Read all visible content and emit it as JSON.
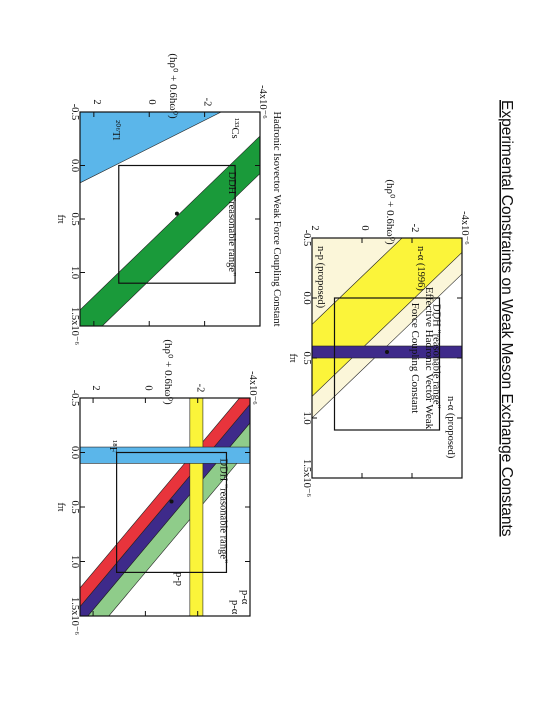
{
  "slide": {
    "title": "Experimental Constraints on Weak Meson Exchange Constants"
  },
  "colors": {
    "background": "#ffffff",
    "cream": "#fbf6d9",
    "yellow": "#fbf43a",
    "green": "#1a9a3a",
    "light_green": "#8fcc8a",
    "blue": "#5bb6ea",
    "purple": "#3e2a8a",
    "red": "#e8343c",
    "axis": "#111111"
  },
  "chart_data": [
    {
      "id": "top",
      "type": "area",
      "title": "Effective Hadronic Vector Weak Force Coupling Constant",
      "xlabel": "fπ",
      "ylabel": "(hρ⁰ + 0.6hω⁰)",
      "xlim": [
        -0.5,
        1.5
      ],
      "ylim": [
        2,
        -4
      ],
      "x_ticks": [
        {
          "v": -0.5,
          "label": "-0.5"
        },
        {
          "v": 0,
          "label": "0.0"
        },
        {
          "v": 0.5,
          "label": "0.5"
        },
        {
          "v": 1.0,
          "label": "1.0"
        },
        {
          "v": 1.5,
          "label": "1.5x10⁻⁶"
        }
      ],
      "y_ticks": [
        {
          "v": 2,
          "label": "2"
        },
        {
          "v": 0,
          "label": "0"
        },
        {
          "v": -2,
          "label": "-2"
        },
        {
          "v": -4,
          "label": "-4x10⁻⁶"
        }
      ],
      "ddh_box": {
        "x": [
          0.0,
          1.1
        ],
        "y": [
          1.1,
          -3.1
        ]
      },
      "ddh_label": "DDH \"reasonable range\"",
      "ddh_point": {
        "x": 0.45,
        "y": -1.0
      },
      "bands": [
        {
          "name": "n-α (proposed)",
          "kind": "diag",
          "color": "cream",
          "x0": -0.5,
          "lo0": -5.5,
          "hi0": 2.0,
          "slope": 5.0
        },
        {
          "name": "n-α (1996)",
          "kind": "diag",
          "color": "yellow",
          "x0": -0.5,
          "lo0": -4.6,
          "hi0": -1.6,
          "slope": 5.0
        },
        {
          "name": "n-p (proposed)",
          "kind": "vertical",
          "color": "purple",
          "x": [
            0.4,
            0.5
          ]
        }
      ]
    },
    {
      "id": "bottom-left",
      "type": "area",
      "title": "Hadronic Isovector Weak Force Coupling Constant",
      "xlabel": "fπ",
      "ylabel": "(hρ⁰ + 0.6hω⁰)",
      "xlim": [
        -0.5,
        1.5
      ],
      "ylim": [
        2.5,
        -4
      ],
      "x_ticks": [
        {
          "v": -0.5,
          "label": "-0.5"
        },
        {
          "v": 0,
          "label": "0.0"
        },
        {
          "v": 0.5,
          "label": "0.5"
        },
        {
          "v": 1.0,
          "label": "1.0"
        },
        {
          "v": 1.5,
          "label": "1.5x10⁻⁶"
        }
      ],
      "y_ticks": [
        {
          "v": 2,
          "label": "2"
        },
        {
          "v": 0,
          "label": "0"
        },
        {
          "v": -2,
          "label": "-2"
        },
        {
          "v": -4,
          "label": "-4x10⁻⁶"
        }
      ],
      "ddh_box": {
        "x": [
          0.0,
          1.1
        ],
        "y": [
          1.1,
          -3.1
        ]
      },
      "ddh_label": "DDH \"reasonable range\"",
      "ddh_point": {
        "x": 0.45,
        "y": -1.0
      },
      "bands": [
        {
          "name": "²⁰⁶Tl",
          "kind": "diag",
          "color": "blue",
          "x0": -0.5,
          "lo0": -2.6,
          "hi0": 2.5,
          "slope": 7.7
        },
        {
          "name": "¹³³Cs",
          "kind": "diag",
          "color": "green",
          "x0": -0.5,
          "lo0": -6.3,
          "hi0": -4.9,
          "slope": 4.0
        }
      ]
    },
    {
      "id": "bottom-right",
      "type": "area",
      "title": "",
      "xlabel": "fπ",
      "ylabel": "(hρ⁰ + 0.6hω⁰)",
      "xlim": [
        -0.5,
        1.5
      ],
      "ylim": [
        2.5,
        -4
      ],
      "x_ticks": [
        {
          "v": -0.5,
          "label": "-0.5"
        },
        {
          "v": 0,
          "label": "0.0"
        },
        {
          "v": 0.5,
          "label": "0.5"
        },
        {
          "v": 1.0,
          "label": "1.0"
        },
        {
          "v": 1.5,
          "label": "1.5x10⁻⁶"
        }
      ],
      "y_ticks": [
        {
          "v": 2,
          "label": "2"
        },
        {
          "v": 0,
          "label": "0"
        },
        {
          "v": -2,
          "label": "-2"
        },
        {
          "v": -4,
          "label": "-4x10⁻⁶"
        }
      ],
      "ddh_box": {
        "x": [
          0.0,
          1.1
        ],
        "y": [
          1.1,
          -3.1
        ]
      },
      "ddh_label": "DDH \"reasonable range\"",
      "ddh_point": {
        "x": 0.45,
        "y": -1.0
      },
      "bands": [
        {
          "name": "p-α",
          "kind": "diag",
          "color": "light_green",
          "x0": -0.5,
          "lo0": -5.6,
          "hi0": -4.8,
          "slope": 3.5
        },
        {
          "name": "",
          "kind": "diag",
          "color": "purple",
          "x0": -0.5,
          "lo0": -4.8,
          "hi0": -4.2,
          "slope": 3.5
        },
        {
          "name": "p-α",
          "kind": "diag",
          "color": "red",
          "x0": -0.5,
          "lo0": -4.2,
          "hi0": -3.6,
          "slope": 3.5
        },
        {
          "name": "p-p",
          "kind": "horizontal",
          "color": "yellow",
          "y": [
            -2.2,
            -1.7
          ]
        },
        {
          "name": "¹⁸F",
          "kind": "vertical",
          "color": "blue",
          "x": [
            -0.05,
            0.1
          ]
        }
      ]
    }
  ]
}
